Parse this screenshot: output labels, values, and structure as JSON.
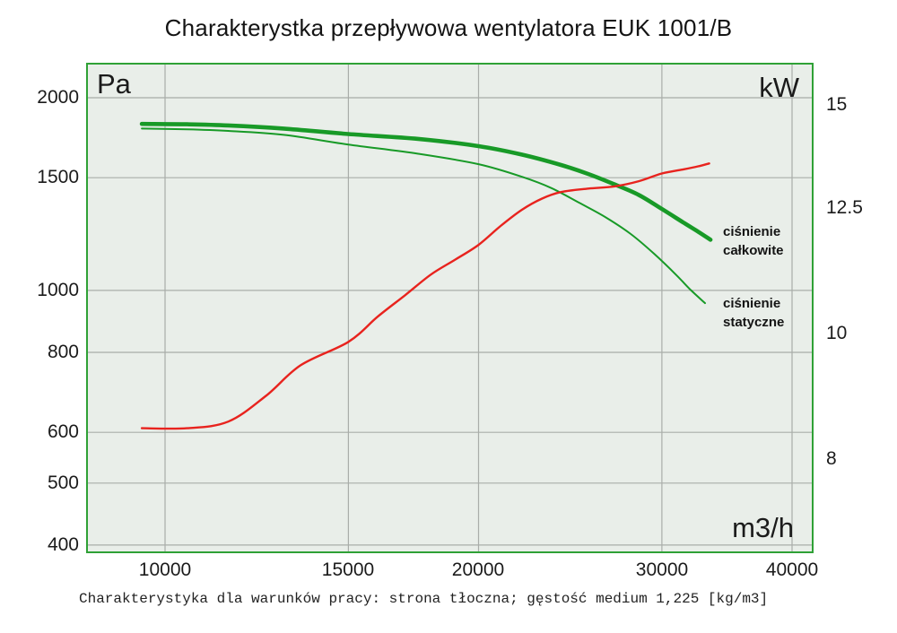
{
  "title": "Charakterystka przepływowa wentylatora EUK 1001/B",
  "caption": "Charakterystyka dla warunków pracy: strona tłoczna; gęstość medium 1,225 [kg/m3]",
  "axes": {
    "left_unit": "Pa",
    "right_unit": "kW",
    "x_unit": "m3/h",
    "x_tick_labels": [
      "10000",
      "15000",
      "20000",
      "30000",
      "40000"
    ],
    "left_tick_labels": [
      "2000",
      "1500",
      "1000",
      "800",
      "600",
      "500",
      "400"
    ],
    "right_tick_labels": [
      "15",
      "12.5",
      "10",
      "8"
    ]
  },
  "legend": {
    "total_lines": [
      "ciśnienie",
      "całkowite"
    ],
    "static_lines": [
      "ciśnienie",
      "statyczne"
    ]
  },
  "colors": {
    "green": "#189a27",
    "red": "#e8231e",
    "plot_bg": "#e9eee9",
    "plot_border": "#2fa136",
    "grid": "#a9ada9",
    "text": "#1f1f1f"
  },
  "chart_data": {
    "type": "line",
    "title": "Charakterystka przepływowa wentylatora EUK 1001/B",
    "xlabel": "m3/h",
    "x_axis": {
      "scale": "log",
      "range": [
        8400,
        42000
      ],
      "ticks": [
        10000,
        15000,
        20000,
        30000,
        40000
      ]
    },
    "y_axis_left": {
      "label": "Pa",
      "scale": "log",
      "range": [
        388,
        2270
      ],
      "ticks": [
        2000,
        1500,
        1000,
        800,
        600,
        500,
        400
      ]
    },
    "y_axis_right": {
      "label": "kW",
      "scale": "log",
      "range": [
        6.8,
        16.2
      ],
      "ticks": [
        15,
        12.5,
        10,
        8
      ]
    },
    "grid": true,
    "series": [
      {
        "id": "total-pressure",
        "name": "ciśnienie całkowite",
        "axis": "left",
        "color": "green",
        "style": "thick",
        "points": [
          [
            9500,
            1820
          ],
          [
            10500,
            1818
          ],
          [
            11500,
            1810
          ],
          [
            13000,
            1790
          ],
          [
            15000,
            1755
          ],
          [
            17500,
            1725
          ],
          [
            20000,
            1680
          ],
          [
            22000,
            1630
          ],
          [
            24000,
            1570
          ],
          [
            25500,
            1520
          ],
          [
            27000,
            1465
          ],
          [
            28500,
            1410
          ],
          [
            30000,
            1340
          ],
          [
            31500,
            1275
          ],
          [
            32500,
            1235
          ],
          [
            33400,
            1200
          ]
        ]
      },
      {
        "id": "static-pressure",
        "name": "ciśnienie statyczne",
        "axis": "left",
        "color": "green",
        "style": "thin",
        "points": [
          [
            9500,
            1790
          ],
          [
            10500,
            1785
          ],
          [
            11500,
            1775
          ],
          [
            13000,
            1750
          ],
          [
            15000,
            1690
          ],
          [
            17500,
            1635
          ],
          [
            20000,
            1575
          ],
          [
            22000,
            1505
          ],
          [
            23500,
            1445
          ],
          [
            25000,
            1370
          ],
          [
            26500,
            1300
          ],
          [
            28000,
            1225
          ],
          [
            29500,
            1140
          ],
          [
            31000,
            1055
          ],
          [
            32000,
            1000
          ],
          [
            33000,
            955
          ]
        ]
      },
      {
        "id": "power-red-unlabeled",
        "name": "",
        "axis": "right",
        "color": "red",
        "style": "medium",
        "points": [
          [
            9500,
            8.45
          ],
          [
            10500,
            8.45
          ],
          [
            11500,
            8.55
          ],
          [
            12500,
            8.95
          ],
          [
            13500,
            9.45
          ],
          [
            15000,
            9.85
          ],
          [
            16000,
            10.3
          ],
          [
            17000,
            10.7
          ],
          [
            18000,
            11.1
          ],
          [
            19000,
            11.4
          ],
          [
            20000,
            11.7
          ],
          [
            21000,
            12.1
          ],
          [
            22000,
            12.45
          ],
          [
            23000,
            12.7
          ],
          [
            24000,
            12.85
          ],
          [
            25500,
            12.93
          ],
          [
            27000,
            12.98
          ],
          [
            28500,
            13.1
          ],
          [
            30000,
            13.28
          ],
          [
            31500,
            13.38
          ],
          [
            32500,
            13.45
          ],
          [
            33300,
            13.52
          ]
        ]
      }
    ]
  }
}
